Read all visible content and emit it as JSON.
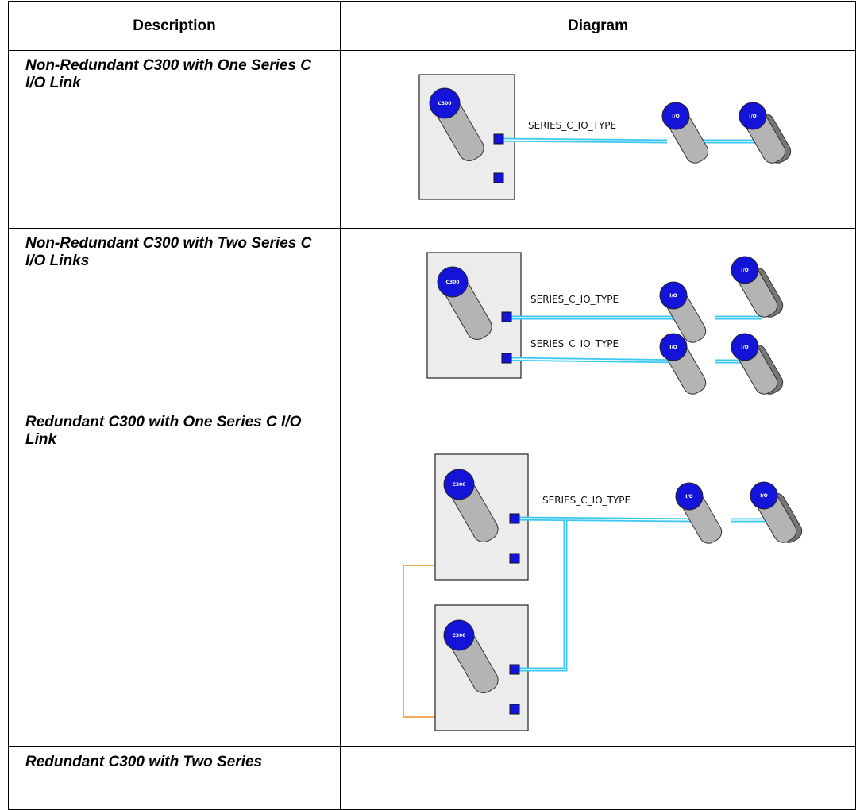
{
  "table": {
    "headers": [
      "Description",
      "Diagram"
    ],
    "rows": [
      {
        "description": "Non-Redundant C300 with One Series C I/O Link",
        "diagram": {
          "controller_label": "C300",
          "io_label": "I/O",
          "links": [
            "SERIES_C_IO_TYPE"
          ]
        }
      },
      {
        "description": "Non-Redundant C300 with Two Series C I/O Links",
        "diagram": {
          "controller_label": "C300",
          "io_label": "I/O",
          "links": [
            "SERIES_C_IO_TYPE",
            "SERIES_C_IO_TYPE"
          ]
        }
      },
      {
        "description": "Redundant C300 with One Series C I/O Link",
        "diagram": {
          "controller_label": "C300",
          "io_label": "I/O",
          "links": [
            "SERIES_C_IO_TYPE"
          ]
        }
      },
      {
        "description": "Redundant C300 with Two Series"
      }
    ]
  }
}
